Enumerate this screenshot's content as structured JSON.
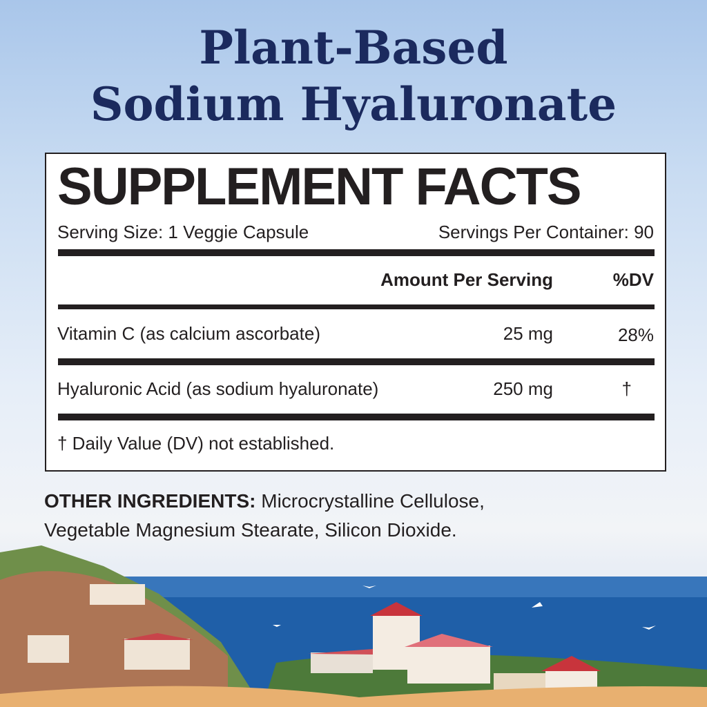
{
  "header": {
    "line1": "Plant-Based",
    "line2": "Sodium Hyaluronate"
  },
  "facts": {
    "title": "SUPPLEMENT FACTS",
    "serving_size": "Serving Size: 1 Veggie Capsule",
    "servings_per_container": "Servings Per Container: 90",
    "col_amount": "Amount Per Serving",
    "col_dv": "%DV",
    "rows": [
      {
        "name": "Vitamin C (as calcium ascorbate)",
        "amount": "25 mg",
        "dv": "28%"
      },
      {
        "name": "Hyaluronic Acid (as sodium hyaluronate)",
        "amount": "250 mg",
        "dv": "†"
      }
    ],
    "footnote": "† Daily Value (DV) not established."
  },
  "other": {
    "label": "OTHER INGREDIENTS:",
    "text": " Microcrystalline Cellulose,",
    "text2": "Vegetable Magnesium Stearate, Silicon Dioxide."
  },
  "colors": {
    "title": "#1b2a5e",
    "text": "#231f20",
    "sea": "#1f5fa8"
  }
}
